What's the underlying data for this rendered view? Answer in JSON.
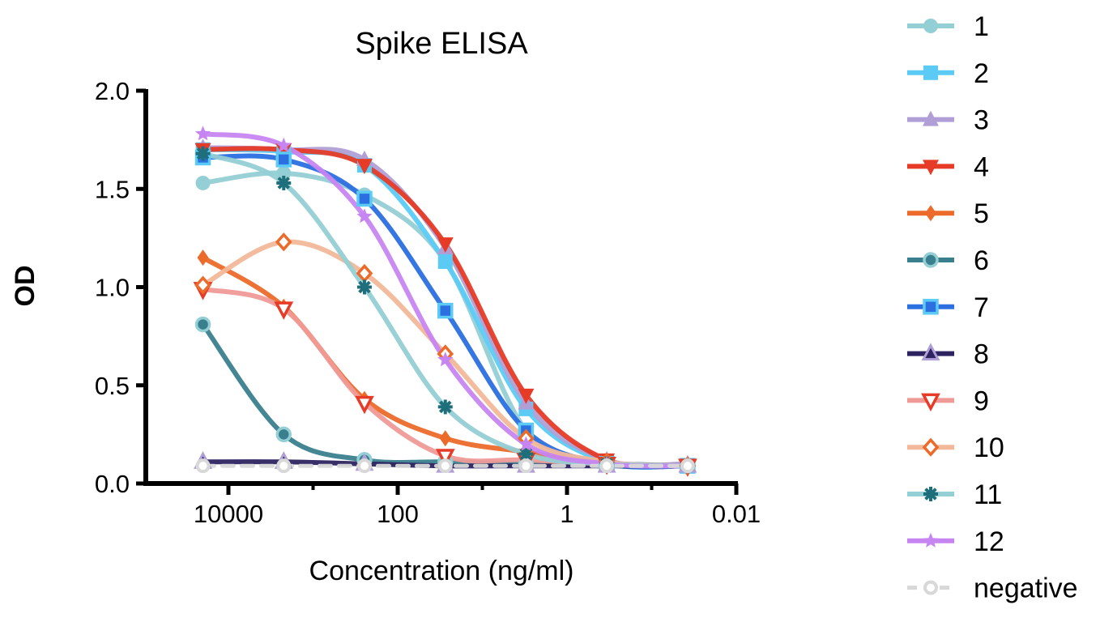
{
  "chart_data": {
    "type": "line",
    "title": "Spike ELISA",
    "xlabel": "Concentration (ng/ml)",
    "ylabel": "OD",
    "x_scale": "log",
    "x_reversed": true,
    "xlim": [
      100000,
      0.01
    ],
    "ylim": [
      0,
      2.0
    ],
    "x_ticks": [
      10000,
      100,
      1,
      0.01
    ],
    "x_tick_labels": [
      "10000",
      "100",
      "1",
      "0.01"
    ],
    "y_ticks": [
      0,
      0.5,
      1.0,
      1.5,
      2.0
    ],
    "y_tick_labels": [
      "0.0",
      "0.5",
      "1.0",
      "1.5",
      "2.0"
    ],
    "legend_position": "right",
    "x": [
      20000,
      2222,
      247,
      27.4,
      3.05,
      0.339,
      0.0376
    ],
    "series": [
      {
        "name": "1",
        "color": "#93cfd5",
        "fill": "#93cfd5",
        "stroke": "#93cfd5",
        "marker": "circle",
        "curve": "sigmoid",
        "values": [
          1.53,
          1.58,
          1.47,
          1.13,
          0.27,
          0.1,
          0.09
        ]
      },
      {
        "name": "2",
        "color": "#5bcbf5",
        "fill": "#5bcbf5",
        "stroke": "#5bcbf5",
        "marker": "square",
        "curve": "sigmoid",
        "values": [
          1.7,
          1.69,
          1.62,
          1.13,
          0.38,
          0.11,
          0.09
        ]
      },
      {
        "name": "3",
        "color": "#b09fd6",
        "fill": "#b09fd6",
        "stroke": "#b09fd6",
        "marker": "triangle",
        "curve": "sigmoid",
        "values": [
          1.71,
          1.7,
          1.65,
          1.2,
          0.41,
          0.12,
          0.1
        ]
      },
      {
        "name": "4",
        "color": "#e63b26",
        "fill": "#e63b26",
        "stroke": "#e63b26",
        "marker": "triangle-down",
        "curve": "sigmoid",
        "values": [
          1.7,
          1.7,
          1.62,
          1.22,
          0.45,
          0.12,
          0.09
        ]
      },
      {
        "name": "5",
        "color": "#ec6a2a",
        "fill": "#ec6a2a",
        "stroke": "#ec6a2a",
        "marker": "diamond",
        "curve": "sigmoid",
        "values": [
          1.15,
          0.9,
          0.43,
          0.23,
          0.16,
          0.1,
          0.09
        ]
      },
      {
        "name": "6",
        "color": "#3a7f8e",
        "fill": "#3a7f8e",
        "stroke": "#93cfd5",
        "marker": "circle-outline",
        "curve": "sigmoid",
        "values": [
          0.81,
          0.25,
          0.12,
          0.11,
          0.1,
          0.1,
          0.09
        ]
      },
      {
        "name": "7",
        "color": "#2b6fe0",
        "fill": "#2b6fe0",
        "stroke": "#5bcbf5",
        "marker": "square-outline",
        "curve": "sigmoid",
        "values": [
          1.66,
          1.65,
          1.45,
          0.88,
          0.27,
          0.1,
          0.09
        ]
      },
      {
        "name": "8",
        "color": "#2d2360",
        "fill": "#2d2360",
        "stroke": "#b09fd6",
        "marker": "triangle-outline",
        "curve": "sigmoid",
        "values": [
          0.11,
          0.11,
          0.1,
          0.09,
          0.09,
          0.09,
          0.09
        ]
      },
      {
        "name": "9",
        "color": "#f09a97",
        "fill": "#ffffff",
        "stroke": "#e63b26",
        "marker": "triangle-down-open",
        "curve": "sigmoid",
        "values": [
          0.99,
          0.89,
          0.41,
          0.14,
          0.12,
          0.1,
          0.09
        ]
      },
      {
        "name": "10",
        "color": "#f3b899",
        "fill": "#ffffff",
        "stroke": "#ec6a2a",
        "marker": "diamond-open",
        "curve": "sigmoid",
        "values": [
          1.01,
          1.23,
          1.07,
          0.66,
          0.23,
          0.11,
          0.09
        ]
      },
      {
        "name": "11",
        "color": "#93cfd5",
        "fill": "#1e6f7b",
        "stroke": "#1e6f7b",
        "marker": "asterisk",
        "curve": "sigmoid",
        "values": [
          1.68,
          1.53,
          1.0,
          0.39,
          0.15,
          0.1,
          0.09
        ]
      },
      {
        "name": "12",
        "color": "#c785f2",
        "fill": "#c785f2",
        "stroke": "#c785f2",
        "marker": "star",
        "curve": "sigmoid",
        "values": [
          1.78,
          1.72,
          1.36,
          0.63,
          0.2,
          0.1,
          0.09
        ]
      },
      {
        "name": "negative",
        "color": "#d8d8d8",
        "fill": "#ffffff",
        "stroke": "#d8d8d8",
        "marker": "circle-open",
        "curve": "dashed",
        "values": [
          0.09,
          0.09,
          0.09,
          0.09,
          0.09,
          0.09,
          0.09
        ]
      }
    ]
  }
}
